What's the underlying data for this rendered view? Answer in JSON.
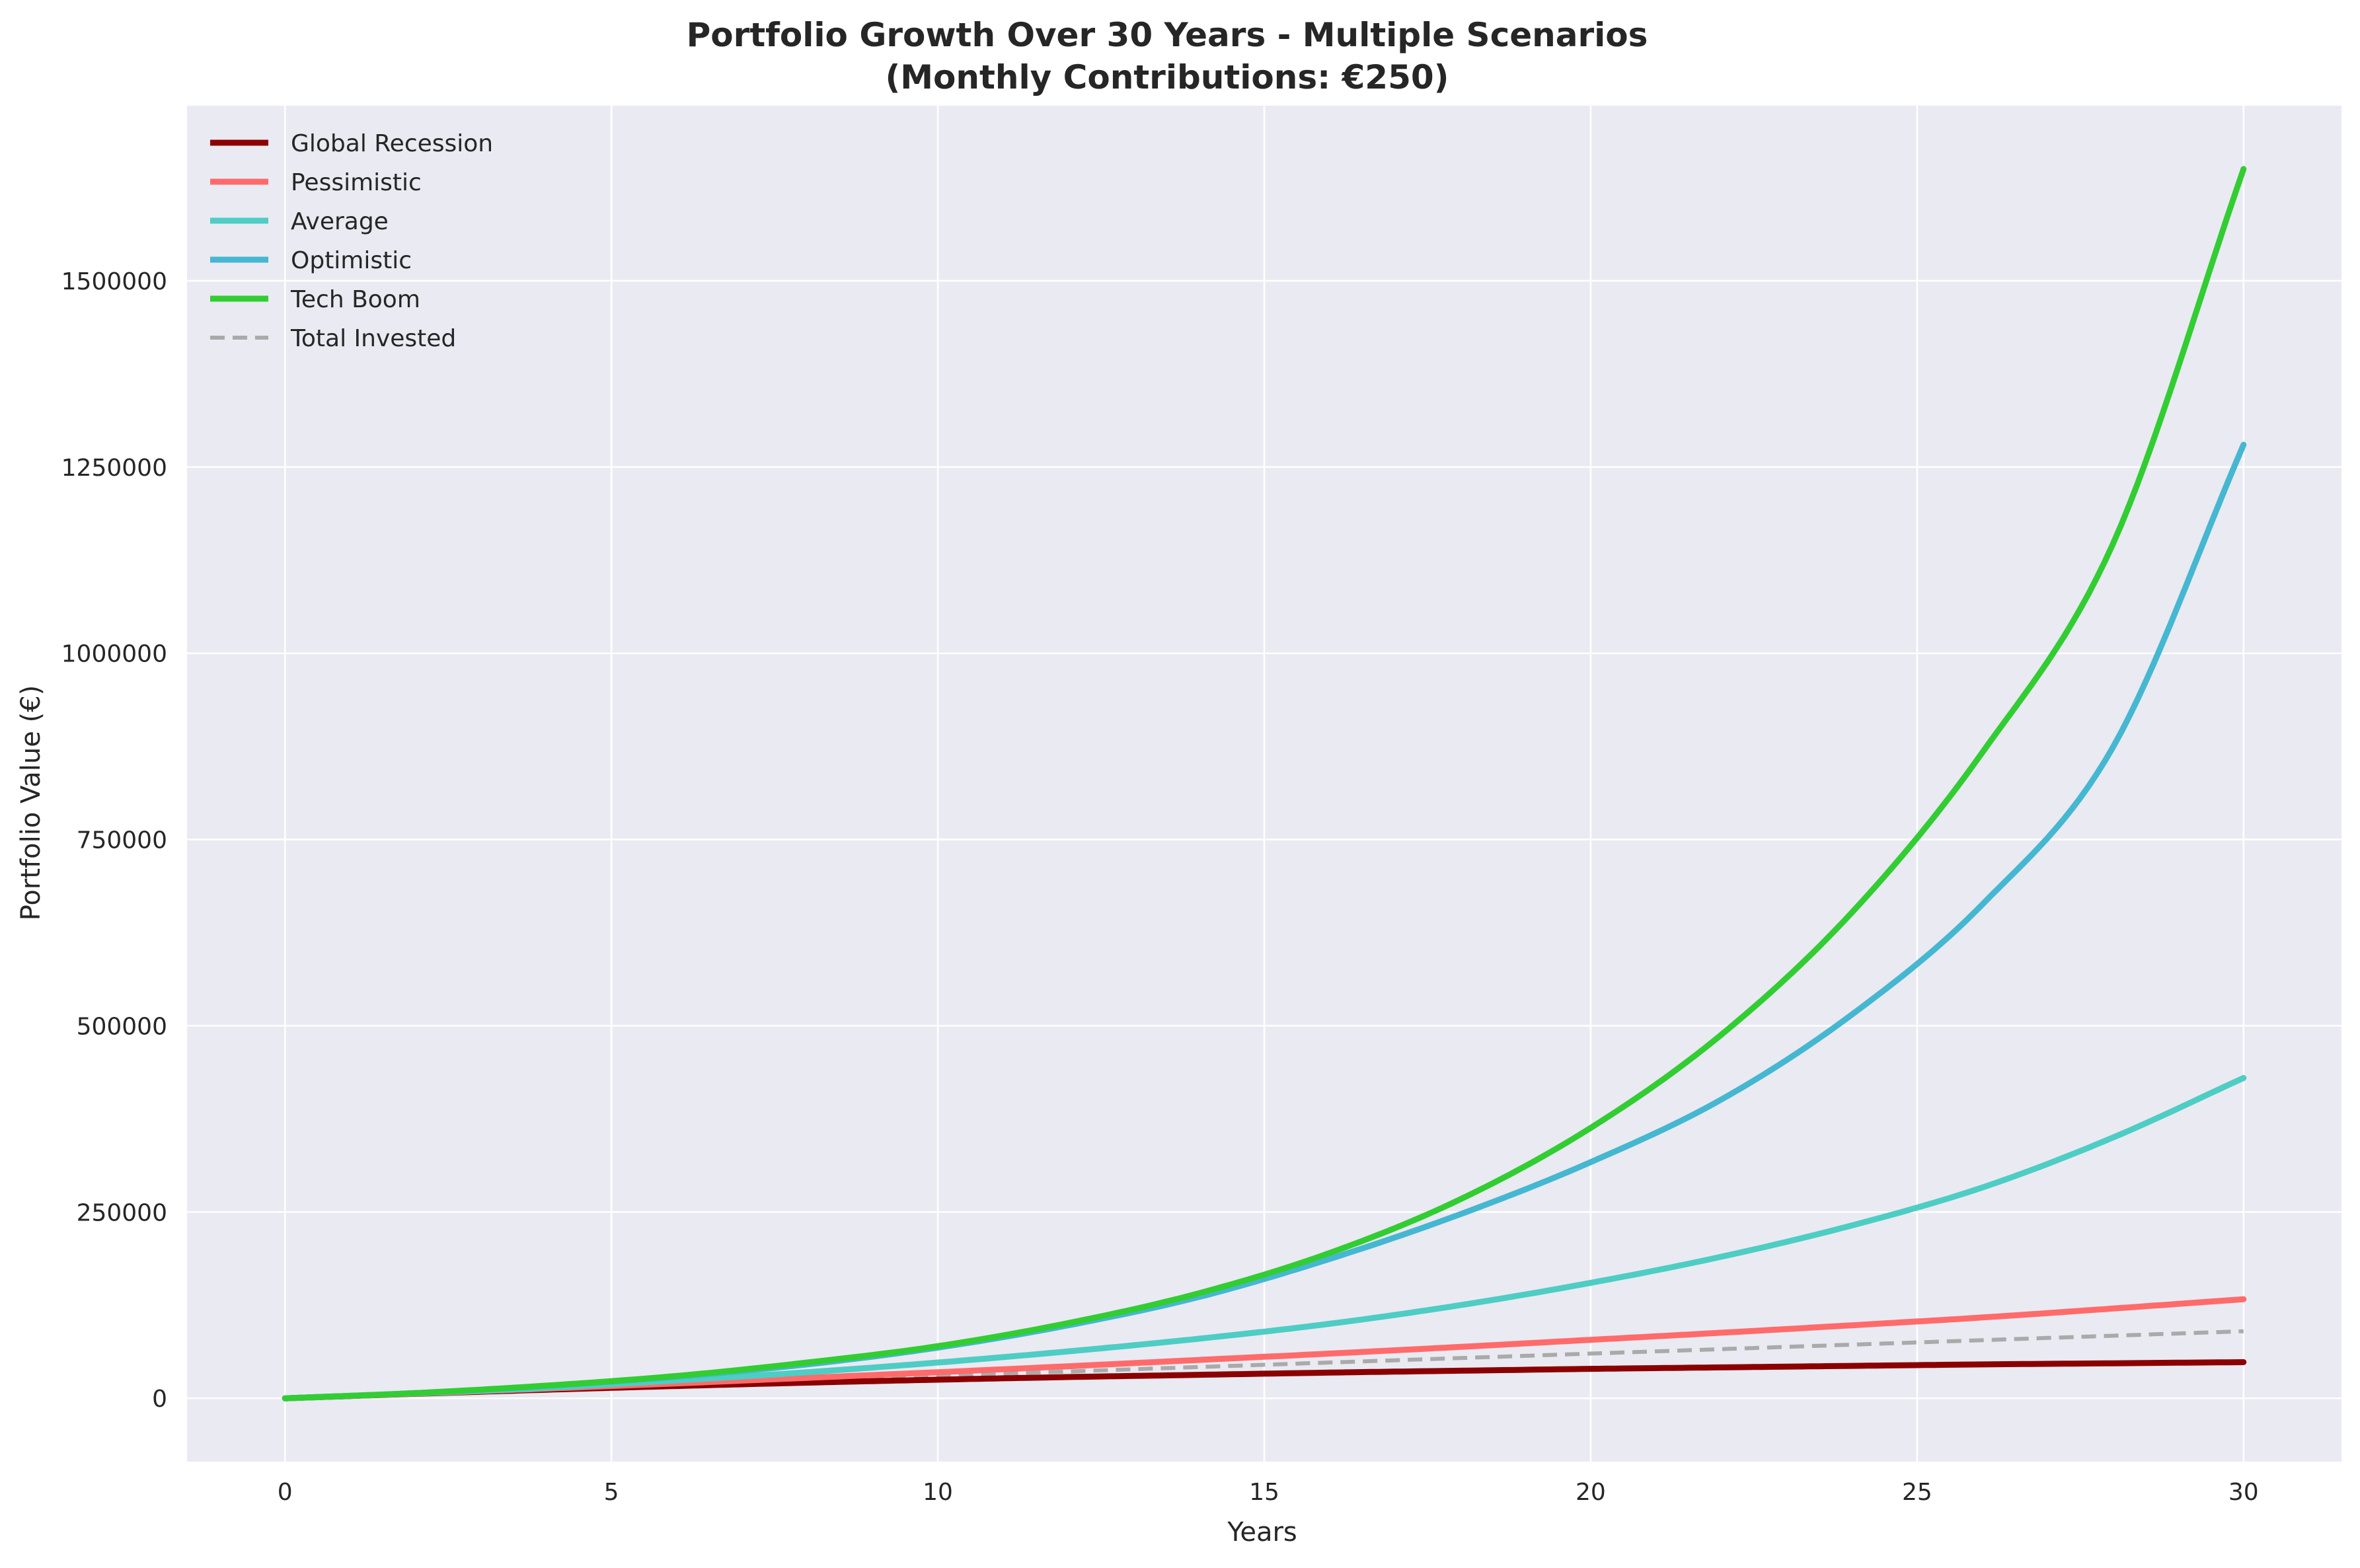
{
  "chart_data": {
    "type": "line",
    "title": "Portfolio Growth Over 30 Years - Multiple Scenarios",
    "subtitle": "(Monthly Contributions: €250)",
    "xlabel": "Years",
    "ylabel": "Portfolio Value (€)",
    "xlim": [
      -1.5,
      31.5
    ],
    "ylim": [
      -85000,
      1735000
    ],
    "x_ticks": [
      0,
      5,
      10,
      15,
      20,
      25,
      30
    ],
    "x_tick_labels": [
      "0",
      "5",
      "10",
      "15",
      "20",
      "25",
      "30"
    ],
    "y_ticks": [
      0,
      250000,
      500000,
      750000,
      1000000,
      1250000,
      1500000
    ],
    "y_tick_labels": [
      "0",
      "250000",
      "500000",
      "750000",
      "1000000",
      "1250000",
      "1500000"
    ],
    "grid": true,
    "legend_position": "top-left",
    "background_color": "#eaeaf2",
    "grid_color": "#ffffff",
    "x": [
      0,
      2,
      4,
      6,
      8,
      10,
      12,
      14,
      16,
      18,
      20,
      22,
      24,
      26,
      28,
      30
    ],
    "series": [
      {
        "name": "Global Recession",
        "color": "#8b0000",
        "style": "solid",
        "values": [
          0,
          6000,
          11500,
          16500,
          21000,
          25000,
          28500,
          31500,
          34500,
          37000,
          39500,
          41500,
          43500,
          45500,
          47000,
          48500
        ]
      },
      {
        "name": "Pessimistic",
        "color": "#ff6b6b",
        "style": "solid",
        "values": [
          0,
          6300,
          13000,
          20000,
          27500,
          35000,
          43000,
          51500,
          60000,
          69000,
          78500,
          88000,
          98000,
          108500,
          120500,
          133000
        ]
      },
      {
        "name": "Average",
        "color": "#4ecdc4",
        "style": "solid",
        "values": [
          0,
          6600,
          14000,
          24000,
          35000,
          48000,
          63000,
          80000,
          100000,
          125000,
          155000,
          190000,
          232000,
          283000,
          350000,
          430000
        ]
      },
      {
        "name": "Optimistic",
        "color": "#45b7d1",
        "style": "solid",
        "values": [
          0,
          7000,
          16500,
          29000,
          45500,
          68000,
          98000,
          136000,
          187000,
          247000,
          317000,
          401000,
          515000,
          663000,
          874000,
          1280000
        ]
      },
      {
        "name": "Tech Boom",
        "color": "#32cd32",
        "style": "solid",
        "values": [
          0,
          7000,
          17000,
          30000,
          48000,
          70000,
          101000,
          141000,
          195000,
          267000,
          363000,
          488000,
          652000,
          867000,
          1147000,
          1650000
        ]
      },
      {
        "name": "Total Invested",
        "color": "#aaaaaa",
        "style": "dashed",
        "values": [
          0,
          6000,
          12000,
          18000,
          24000,
          30000,
          36000,
          42000,
          48000,
          54000,
          60000,
          66000,
          72000,
          78000,
          84000,
          90000
        ]
      }
    ]
  }
}
